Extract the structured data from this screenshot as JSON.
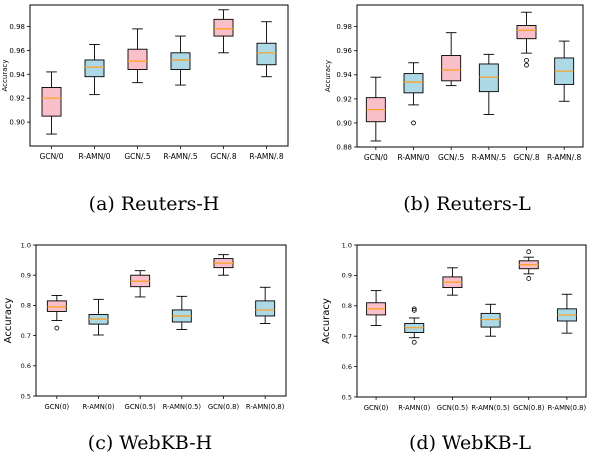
{
  "colors": {
    "gcn_box": "#f9c0c9",
    "ramn_box": "#add8e6",
    "median": "#ff9f1a",
    "line": "#000000"
  },
  "chart_data": [
    {
      "type": "box",
      "caption": "(a) Reuters-H",
      "ylabel": "Accuracy",
      "ylim": [
        0.88,
        0.998
      ],
      "yticks": [
        "0.90",
        "0.92",
        "0.94",
        "0.96",
        "0.98"
      ],
      "categories": [
        "GCN/0",
        "R-AMN/0",
        "GCN/.5",
        "R-AMN/.5",
        "GCN/.8",
        "R-AMN/.8"
      ],
      "boxes": [
        {
          "min": 0.89,
          "q1": 0.905,
          "median": 0.92,
          "q3": 0.929,
          "max": 0.942,
          "outliers": []
        },
        {
          "min": 0.923,
          "q1": 0.938,
          "median": 0.946,
          "q3": 0.952,
          "max": 0.965,
          "outliers": []
        },
        {
          "min": 0.933,
          "q1": 0.944,
          "median": 0.951,
          "q3": 0.961,
          "max": 0.978,
          "outliers": []
        },
        {
          "min": 0.931,
          "q1": 0.944,
          "median": 0.952,
          "q3": 0.958,
          "max": 0.972,
          "outliers": []
        },
        {
          "min": 0.958,
          "q1": 0.972,
          "median": 0.978,
          "q3": 0.986,
          "max": 0.994,
          "outliers": []
        },
        {
          "min": 0.938,
          "q1": 0.948,
          "median": 0.958,
          "q3": 0.966,
          "max": 0.984,
          "outliers": []
        }
      ]
    },
    {
      "type": "box",
      "caption": "(b) Reuters-L",
      "ylabel": "Accuracy",
      "ylim": [
        0.88,
        0.998
      ],
      "yticks": [
        "0.88",
        "0.90",
        "0.92",
        "0.94",
        "0.96",
        "0.98"
      ],
      "categories": [
        "GCN/0",
        "R-AMN/0",
        "GCN/.5",
        "R-AMN/.5",
        "GCN/.8",
        "R-AMN/.8"
      ],
      "boxes": [
        {
          "min": 0.885,
          "q1": 0.901,
          "median": 0.911,
          "q3": 0.921,
          "max": 0.938,
          "outliers": []
        },
        {
          "min": 0.915,
          "q1": 0.925,
          "median": 0.934,
          "q3": 0.941,
          "max": 0.95,
          "outliers": [
            0.9
          ]
        },
        {
          "min": 0.931,
          "q1": 0.935,
          "median": 0.944,
          "q3": 0.956,
          "max": 0.975,
          "outliers": []
        },
        {
          "min": 0.907,
          "q1": 0.926,
          "median": 0.938,
          "q3": 0.949,
          "max": 0.957,
          "outliers": []
        },
        {
          "min": 0.958,
          "q1": 0.97,
          "median": 0.977,
          "q3": 0.981,
          "max": 0.992,
          "outliers": [
            0.948,
            0.952
          ]
        },
        {
          "min": 0.918,
          "q1": 0.932,
          "median": 0.943,
          "q3": 0.954,
          "max": 0.968,
          "outliers": []
        }
      ]
    },
    {
      "type": "box",
      "caption": "(c) WebKB-H",
      "ylabel": "Accuracy",
      "ylim": [
        0.5,
        1.0
      ],
      "yticks": [
        "0.5",
        "0.6",
        "0.7",
        "0.8",
        "0.9",
        "1.0"
      ],
      "categories": [
        "GCN(0)",
        "R-AMN(0)",
        "GCN(0.5)",
        "R-AMN(0.5)",
        "GCN(0.8)",
        "R-AMN(0.8)"
      ],
      "boxes": [
        {
          "min": 0.75,
          "q1": 0.78,
          "median": 0.795,
          "q3": 0.815,
          "max": 0.833,
          "outliers": [
            0.725
          ]
        },
        {
          "min": 0.702,
          "q1": 0.738,
          "median": 0.755,
          "q3": 0.77,
          "max": 0.82,
          "outliers": []
        },
        {
          "min": 0.828,
          "q1": 0.862,
          "median": 0.88,
          "q3": 0.9,
          "max": 0.915,
          "outliers": []
        },
        {
          "min": 0.72,
          "q1": 0.745,
          "median": 0.765,
          "q3": 0.785,
          "max": 0.83,
          "outliers": []
        },
        {
          "min": 0.9,
          "q1": 0.925,
          "median": 0.94,
          "q3": 0.955,
          "max": 0.968,
          "outliers": []
        },
        {
          "min": 0.74,
          "q1": 0.765,
          "median": 0.785,
          "q3": 0.815,
          "max": 0.86,
          "outliers": []
        }
      ]
    },
    {
      "type": "box",
      "caption": "(d) WebKB-L",
      "ylabel": "Accuracy",
      "ylim": [
        0.5,
        1.0
      ],
      "yticks": [
        "0.5",
        "0.6",
        "0.7",
        "0.8",
        "0.9",
        "1.0"
      ],
      "categories": [
        "GCN(0)",
        "R-AMN(0)",
        "GCN(0.5)",
        "R-AMN(0.5)",
        "GCN(0.8)",
        "R-AMN(0.8)"
      ],
      "boxes": [
        {
          "min": 0.735,
          "q1": 0.77,
          "median": 0.79,
          "q3": 0.81,
          "max": 0.85,
          "outliers": []
        },
        {
          "min": 0.695,
          "q1": 0.712,
          "median": 0.728,
          "q3": 0.742,
          "max": 0.76,
          "outliers": [
            0.68,
            0.785,
            0.79
          ]
        },
        {
          "min": 0.835,
          "q1": 0.86,
          "median": 0.878,
          "q3": 0.895,
          "max": 0.925,
          "outliers": []
        },
        {
          "min": 0.7,
          "q1": 0.73,
          "median": 0.755,
          "q3": 0.775,
          "max": 0.805,
          "outliers": []
        },
        {
          "min": 0.905,
          "q1": 0.922,
          "median": 0.935,
          "q3": 0.948,
          "max": 0.96,
          "outliers": [
            0.89,
            0.978
          ]
        },
        {
          "min": 0.71,
          "q1": 0.75,
          "median": 0.77,
          "q3": 0.79,
          "max": 0.838,
          "outliers": []
        }
      ]
    }
  ]
}
